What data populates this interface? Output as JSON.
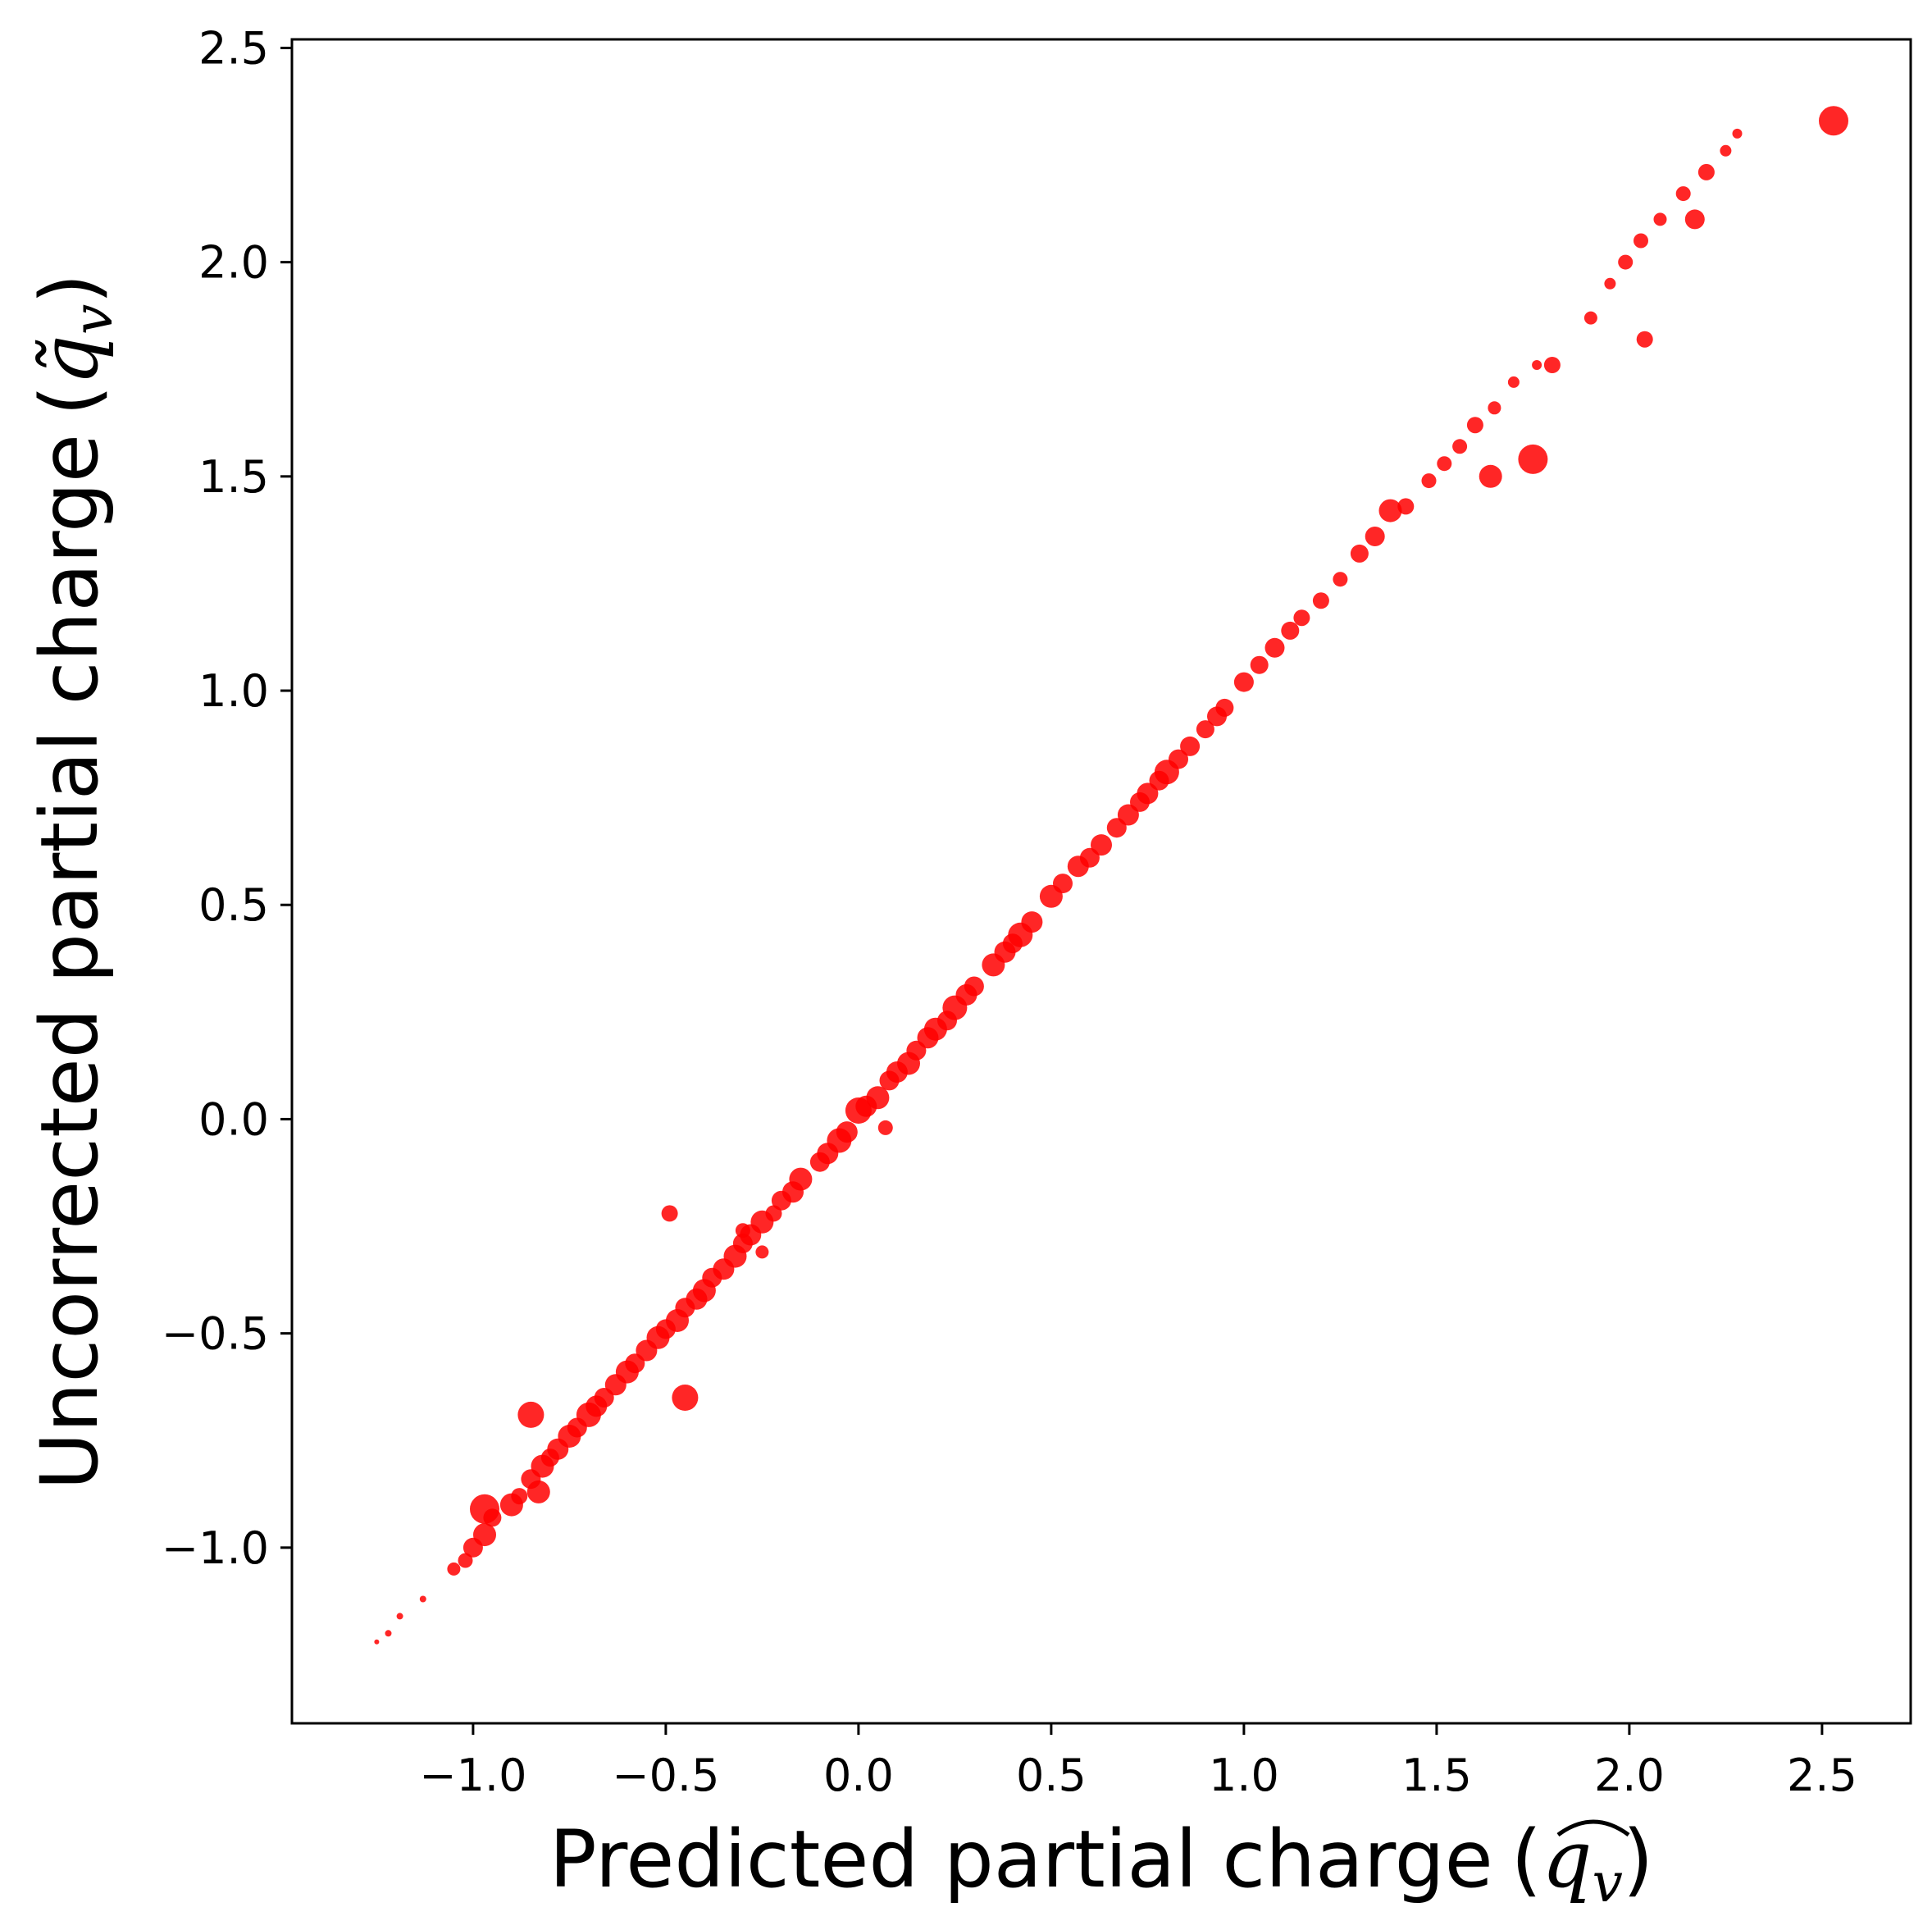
{
  "chart_data": {
    "type": "scatter",
    "title": "",
    "xlabel": "Predicted partial charge",
    "xlabel_symbol": "q",
    "xlabel_subscript": "v",
    "ylabel": "Uncorrected partial charge",
    "ylabel_symbol": "q̃",
    "ylabel_subscript": "v",
    "xlim": [
      -1.47,
      2.73
    ],
    "ylim": [
      -1.41,
      2.52
    ],
    "x_ticks": [
      -1.0,
      -0.5,
      0.0,
      0.5,
      1.0,
      1.5,
      2.0,
      2.5
    ],
    "x_tick_labels": [
      "−1.0",
      "−0.5",
      "0.0",
      "0.5",
      "1.0",
      "1.5",
      "2.0",
      "2.5"
    ],
    "y_ticks": [
      -1.0,
      -0.5,
      0.0,
      0.5,
      1.0,
      1.5,
      2.0,
      2.5
    ],
    "y_tick_labels": [
      "−1.0",
      "−0.5",
      "0.0",
      "0.5",
      "1.0",
      "1.5",
      "2.0",
      "2.5"
    ],
    "grid": false,
    "legend": "none",
    "marker_color": "#ff0000",
    "series": [
      {
        "x": [
          -1.25,
          -1.22,
          -1.19,
          -1.13,
          -1.05,
          -1.02,
          -1.0,
          -0.97,
          -0.95,
          -0.9,
          -0.88,
          -0.85,
          -0.82,
          -0.8,
          -0.78,
          -0.75,
          -0.73,
          -0.7,
          -0.68,
          -0.66,
          -0.63,
          -0.6,
          -0.58,
          -0.55,
          -0.52,
          -0.5,
          -0.47,
          -0.45,
          -0.42,
          -0.4,
          -0.38,
          -0.35,
          -0.32,
          -0.3,
          -0.28,
          -0.25,
          -0.2,
          -0.17,
          -0.15,
          -0.1,
          -0.08,
          -0.05,
          -0.03,
          0.0,
          0.02,
          0.05,
          0.08,
          0.1,
          0.13,
          0.15,
          0.18,
          0.2,
          0.23,
          0.25,
          0.28,
          0.3,
          0.35,
          0.38,
          0.4,
          0.42,
          0.45,
          0.5,
          0.53,
          0.57,
          0.6,
          0.63,
          0.67,
          0.7,
          0.73,
          0.75,
          0.78,
          0.8,
          0.83,
          0.86,
          0.9,
          0.93,
          0.95,
          1.0,
          1.04,
          1.08,
          1.12,
          1.15,
          1.2,
          1.25,
          1.3,
          1.34,
          1.38,
          1.42,
          1.48,
          1.52,
          1.56,
          1.6,
          1.65,
          1.7,
          1.76,
          1.8,
          1.9,
          1.95,
          1.99,
          2.03,
          2.08,
          2.14,
          2.2,
          2.25,
          2.28,
          2.53,
          -0.49,
          -0.45,
          -0.3,
          -0.22,
          -0.25,
          0.07,
          1.75,
          1.64,
          2.04,
          2.17,
          -0.97,
          -0.83,
          -0.85
        ],
        "y": [
          -1.22,
          -1.2,
          -1.16,
          -1.12,
          -1.05,
          -1.03,
          -1.0,
          -0.97,
          -0.93,
          -0.9,
          -0.88,
          -0.84,
          -0.81,
          -0.79,
          -0.77,
          -0.74,
          -0.72,
          -0.69,
          -0.67,
          -0.65,
          -0.62,
          -0.59,
          -0.57,
          -0.54,
          -0.51,
          -0.49,
          -0.47,
          -0.44,
          -0.42,
          -0.4,
          -0.37,
          -0.35,
          -0.32,
          -0.29,
          -0.27,
          -0.24,
          -0.19,
          -0.17,
          -0.14,
          -0.1,
          -0.08,
          -0.05,
          -0.03,
          0.02,
          0.03,
          0.05,
          0.09,
          0.11,
          0.13,
          0.16,
          0.19,
          0.21,
          0.23,
          0.26,
          0.29,
          0.31,
          0.36,
          0.39,
          0.41,
          0.43,
          0.46,
          0.52,
          0.55,
          0.59,
          0.61,
          0.64,
          0.68,
          0.71,
          0.74,
          0.76,
          0.79,
          0.81,
          0.84,
          0.87,
          0.91,
          0.94,
          0.96,
          1.02,
          1.06,
          1.1,
          1.14,
          1.17,
          1.21,
          1.26,
          1.32,
          1.36,
          1.42,
          1.43,
          1.49,
          1.53,
          1.57,
          1.62,
          1.66,
          1.72,
          1.76,
          1.76,
          1.87,
          1.95,
          2.0,
          2.05,
          2.1,
          2.16,
          2.21,
          2.26,
          2.3,
          2.33,
          -0.22,
          -0.65,
          -0.26,
          -0.22,
          -0.31,
          -0.02,
          1.54,
          1.5,
          1.82,
          2.1,
          -0.91,
          -0.87,
          -0.69
        ],
        "s": [
          3,
          4,
          4,
          4,
          8,
          9,
          12,
          14,
          11,
          14,
          10,
          12,
          14,
          11,
          13,
          14,
          12,
          15,
          13,
          12,
          13,
          14,
          12,
          13,
          14,
          12,
          14,
          12,
          13,
          14,
          12,
          13,
          14,
          12,
          13,
          14,
          12,
          13,
          14,
          12,
          13,
          15,
          13,
          16,
          13,
          14,
          12,
          13,
          14,
          12,
          13,
          14,
          12,
          15,
          13,
          12,
          14,
          13,
          12,
          15,
          13,
          14,
          12,
          13,
          12,
          13,
          12,
          13,
          12,
          13,
          12,
          15,
          12,
          12,
          11,
          12,
          11,
          12,
          11,
          12,
          11,
          10,
          10,
          9,
          11,
          12,
          14,
          10,
          9,
          9,
          9,
          10,
          8,
          7,
          6,
          10,
          8,
          7,
          9,
          9,
          8,
          9,
          10,
          7,
          6,
          18,
          10,
          16,
          9,
          10,
          8,
          9,
          18,
          14,
          10,
          12,
          18,
          14,
          16
        ]
      }
    ]
  }
}
